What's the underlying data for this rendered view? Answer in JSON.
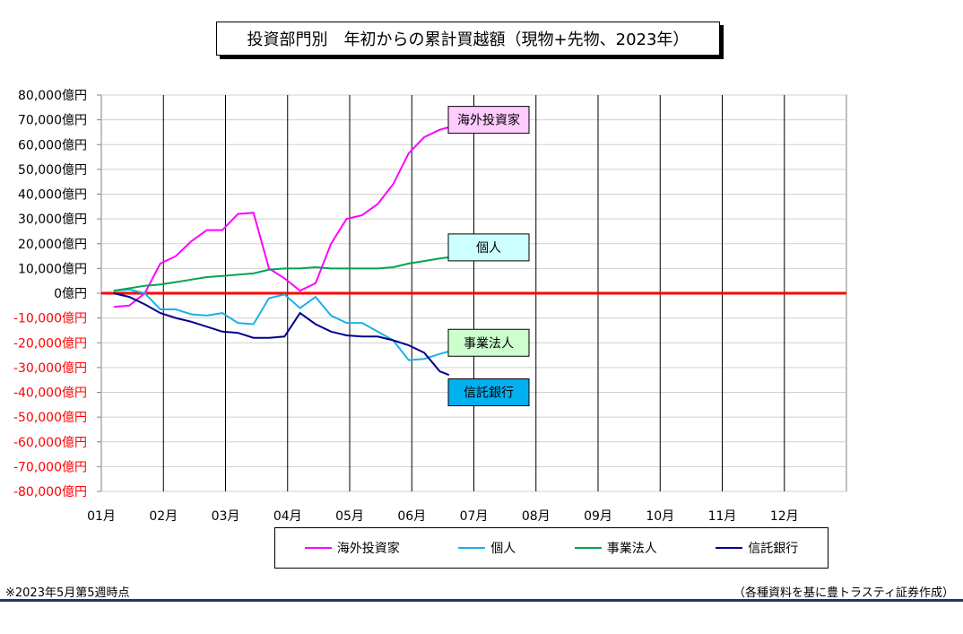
{
  "chart_data": {
    "type": "line",
    "title": "投資部門別　年初からの累計買越額（現物+先物、2023年）",
    "x_tick_labels": [
      "01月",
      "02月",
      "03月",
      "04月",
      "05月",
      "06月",
      "07月",
      "08月",
      "09月",
      "10月",
      "11月",
      "12月"
    ],
    "y_tick_labels": [
      "80,000億円",
      "70,000億円",
      "60,000億円",
      "50,000億円",
      "40,000億円",
      "30,000億円",
      "20,000億円",
      "10,000億円",
      "0億円",
      "-10,000億円",
      "-20,000億円",
      "-30,000億円",
      "-40,000億円",
      "-50,000億円",
      "-60,000億円",
      "-70,000億円",
      "-80,000億円"
    ],
    "ylim": [
      -80000,
      80000
    ],
    "ytick_step": 10000,
    "xlim": [
      1,
      13
    ],
    "grid": true,
    "legend_position": "bottom",
    "zero_line_color": "#ff0000",
    "series": [
      {
        "name": "海外投資家",
        "color": "#ff00ff",
        "label_box_bg": "#ffccff",
        "x": [
          1.2,
          1.45,
          1.7,
          1.95,
          2.2,
          2.45,
          2.7,
          2.95,
          3.2,
          3.45,
          3.7,
          3.95,
          4.2,
          4.45,
          4.7,
          4.95,
          5.2,
          5.45,
          5.7,
          5.95,
          6.2,
          6.45,
          6.6
        ],
        "values": [
          -5500,
          -5000,
          0,
          12000,
          15000,
          21000,
          25500,
          25500,
          32000,
          32500,
          10000,
          6000,
          1000,
          4000,
          20000,
          30000,
          31500,
          36000,
          44000,
          56500,
          63000,
          66000,
          67000
        ]
      },
      {
        "name": "個人",
        "color": "#1ab2e6",
        "label_box_bg": "#ccffff",
        "x": [
          1.2,
          1.45,
          1.7,
          1.95,
          2.2,
          2.45,
          2.7,
          2.95,
          3.2,
          3.45,
          3.7,
          3.95,
          4.2,
          4.45,
          4.7,
          4.95,
          5.2,
          5.45,
          5.7,
          5.95,
          6.2,
          6.45,
          6.6
        ],
        "values": [
          1000,
          1500,
          0,
          -6500,
          -6500,
          -8500,
          -9000,
          -8000,
          -12000,
          -12500,
          -2000,
          -500,
          -6000,
          -1500,
          -9000,
          -12000,
          -12000,
          -15500,
          -19000,
          -27000,
          -26500,
          -24500,
          -23500
        ]
      },
      {
        "name": "事業法人",
        "color": "#00a550",
        "label_box_bg": "#ccffcc",
        "x": [
          1.2,
          1.45,
          1.7,
          1.95,
          2.2,
          2.45,
          2.7,
          2.95,
          3.2,
          3.45,
          3.7,
          3.95,
          4.2,
          4.45,
          4.7,
          4.95,
          5.2,
          5.45,
          5.7,
          5.95,
          6.2,
          6.45,
          6.6
        ],
        "values": [
          1000,
          2000,
          3000,
          3500,
          4500,
          5500,
          6500,
          7000,
          7500,
          8000,
          9500,
          10000,
          10000,
          10500,
          10000,
          10000,
          10000,
          10000,
          10500,
          12000,
          13000,
          14000,
          14500
        ]
      },
      {
        "name": "信託銀行",
        "color": "#00008b",
        "label_box_bg": "#00b0f0",
        "x": [
          1.2,
          1.45,
          1.7,
          1.95,
          2.2,
          2.45,
          2.7,
          2.95,
          3.2,
          3.45,
          3.7,
          3.95,
          4.2,
          4.45,
          4.7,
          4.95,
          5.2,
          5.45,
          5.7,
          5.95,
          6.2,
          6.45,
          6.6
        ],
        "values": [
          0,
          -1500,
          -4500,
          -8000,
          -10000,
          -11500,
          -13500,
          -15500,
          -16000,
          -18000,
          -18000,
          -17500,
          -8000,
          -12500,
          -15500,
          -17000,
          -17500,
          -17500,
          -19000,
          -21000,
          -24000,
          -31500,
          -33000
        ]
      }
    ]
  },
  "legend": {
    "items": [
      "海外投資家",
      "個人",
      "事業法人",
      "信託銀行"
    ]
  },
  "footer": {
    "note": "※2023年5月第5週時点",
    "source": "（各種資料を基に豊トラスティ証券作成）"
  }
}
